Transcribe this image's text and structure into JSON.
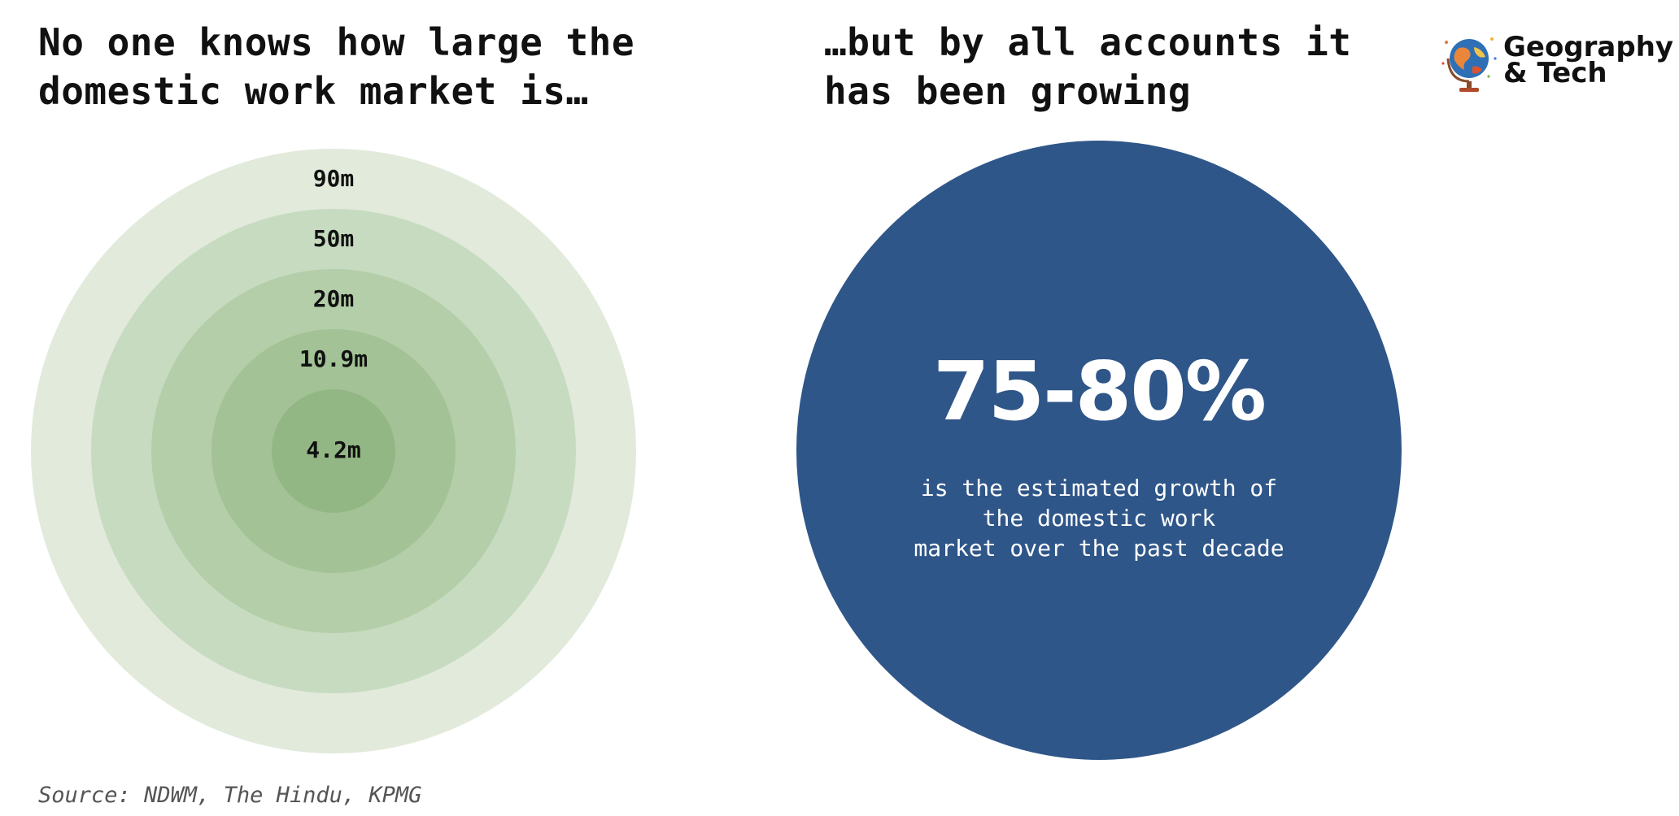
{
  "left_panel": {
    "title": "No one knows how large the\ndomestic work market is…"
  },
  "right_panel": {
    "title": "…but by all accounts it\nhas been growing",
    "stat_value": "75-80%",
    "stat_caption": "is the estimated growth of\nthe domestic work\nmarket over the past decade",
    "circle_color": "#2f5689"
  },
  "logo": {
    "text": "Geography\n& Tech",
    "icon": "globe-icon"
  },
  "source": "Source: NDWM, The Hindu, KPMG",
  "chart_data": [
    {
      "type": "nested-circles",
      "title": "No one knows how large the domestic work market is…",
      "unit": "m",
      "rings": [
        {
          "label": "90m",
          "value": 90,
          "color": "#e1eadb"
        },
        {
          "label": "50m",
          "value": 50,
          "color": "#c7dbc0"
        },
        {
          "label": "20m",
          "value": 20,
          "color": "#b3cea8"
        },
        {
          "label": "10.9m",
          "value": 10.9,
          "color": "#a3c295"
        },
        {
          "label": "4.2m",
          "value": 4.2,
          "color": "#93b784"
        }
      ]
    },
    {
      "type": "single-stat",
      "title": "…but by all accounts it has been growing",
      "value": "75-80%",
      "caption": "is the estimated growth of the domestic work market over the past decade"
    }
  ]
}
